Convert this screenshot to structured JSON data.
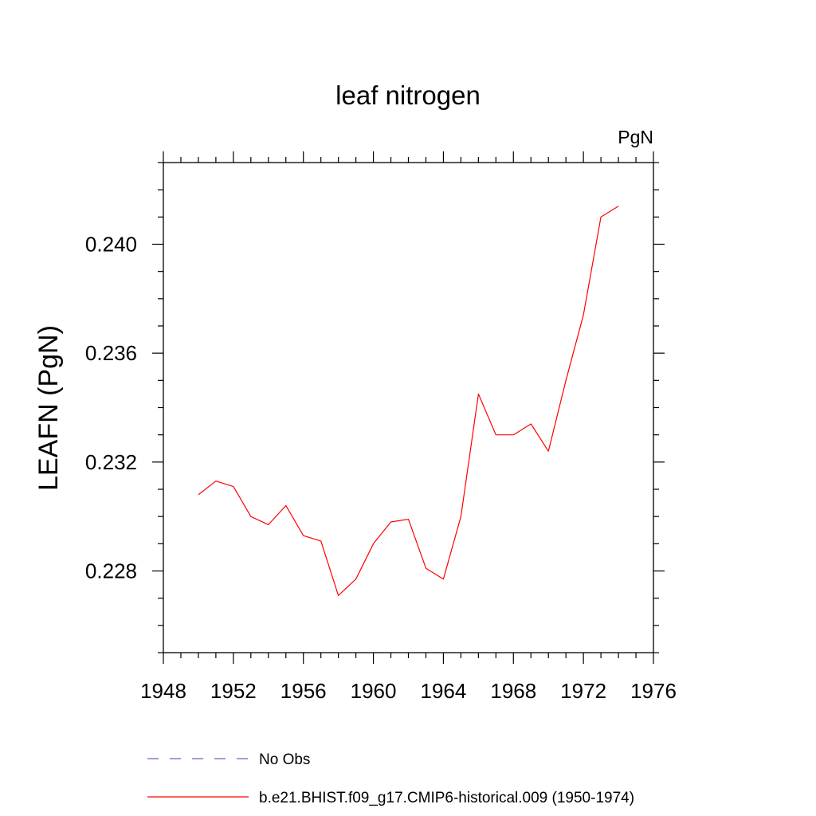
{
  "chart_data": {
    "type": "line",
    "title": "leaf nitrogen",
    "units": "PgN",
    "xlabel": "",
    "ylabel": "LEAFN  (PgN)",
    "xlim": [
      1948,
      1976
    ],
    "ylim": [
      0.225,
      0.243
    ],
    "x_ticks": [
      "1948",
      "1952",
      "1956",
      "1960",
      "1964",
      "1968",
      "1972",
      "1976"
    ],
    "y_ticks": [
      "0.228",
      "0.232",
      "0.236",
      "0.240"
    ],
    "grid": false,
    "legend_placement": "bottom",
    "series": [
      {
        "name": "No Obs",
        "color": "#6b5fc7",
        "dashed": true,
        "x": [],
        "y": []
      },
      {
        "name": "b.e21.BHIST.f09_g17.CMIP6-historical.009 (1950-1974)",
        "color": "#ff0000",
        "dashed": false,
        "x": [
          1950,
          1951,
          1952,
          1953,
          1954,
          1955,
          1956,
          1957,
          1958,
          1959,
          1960,
          1961,
          1962,
          1963,
          1964,
          1965,
          1966,
          1967,
          1968,
          1969,
          1970,
          1971,
          1972,
          1973,
          1974
        ],
        "y": [
          0.2308,
          0.2313,
          0.2311,
          0.23,
          0.2297,
          0.2304,
          0.2293,
          0.2291,
          0.2271,
          0.2277,
          0.229,
          0.2298,
          0.2299,
          0.2281,
          0.2277,
          0.23,
          0.2345,
          0.233,
          0.233,
          0.2334,
          0.2324,
          0.235,
          0.2374,
          0.241,
          0.2414
        ]
      }
    ]
  }
}
